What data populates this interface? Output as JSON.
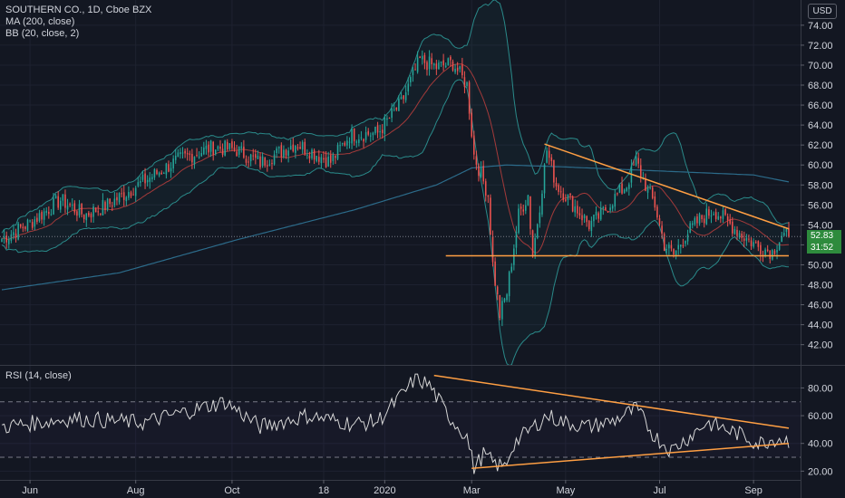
{
  "legend": {
    "symbol": "SOUTHERN CO., 1D, Cboe BZX",
    "ma": "MA (200, close)",
    "bb": "BB (20, close, 2)",
    "rsi": "RSI (14, close)"
  },
  "currency": "USD",
  "price_tag": "52.83",
  "countdown_tag": "31:52",
  "colors": {
    "background": "#131722",
    "up": "#26a69a",
    "down": "#ef5350",
    "ma200": "#2c6b8a",
    "bb_band": "#2a8a8a",
    "bb_basis": "#a33a3a",
    "trendline": "#ff9f43",
    "rsi_line": "#d6d6d6",
    "price_tag": "#2e8b3d"
  },
  "chart_data": [
    {
      "type": "candlestick",
      "y_ticks": [
        "42.00",
        "44.00",
        "46.00",
        "48.00",
        "50.00",
        "52.00",
        "54.00",
        "56.00",
        "58.00",
        "60.00",
        "62.00",
        "64.00",
        "66.00",
        "68.00",
        "70.00",
        "72.00",
        "74.00"
      ],
      "x_ticks": [
        "Jun",
        "Aug",
        "Oct",
        "18",
        "2020",
        "Mar",
        "May",
        "Jul",
        "Sep"
      ],
      "ylim": [
        40.7,
        75.8
      ],
      "x_count": 336,
      "x_tick_index": [
        12,
        57,
        98,
        137,
        163,
        200,
        240,
        280,
        320
      ],
      "last_price": 52.83,
      "price_anchors": [
        [
          0,
          52.6
        ],
        [
          12,
          54.2
        ],
        [
          25,
          56.5
        ],
        [
          35,
          55.0
        ],
        [
          45,
          56.0
        ],
        [
          60,
          58.3
        ],
        [
          75,
          60.5
        ],
        [
          90,
          61.8
        ],
        [
          100,
          61.5
        ],
        [
          110,
          60.2
        ],
        [
          125,
          62.2
        ],
        [
          133,
          61.2
        ],
        [
          140,
          60.3
        ],
        [
          148,
          63.0
        ],
        [
          160,
          63.2
        ],
        [
          170,
          66.2
        ],
        [
          178,
          70.5
        ],
        [
          185,
          69.8
        ],
        [
          192,
          70.2
        ],
        [
          198,
          68.0
        ],
        [
          201,
          61.0
        ],
        [
          207,
          57.0
        ],
        [
          209,
          50.0
        ],
        [
          212,
          45.0
        ],
        [
          215,
          47.2
        ],
        [
          220,
          55.0
        ],
        [
          224,
          57.0
        ],
        [
          226,
          51.0
        ],
        [
          229,
          56.0
        ],
        [
          232,
          61.5
        ],
        [
          236,
          58.0
        ],
        [
          240,
          57.0
        ],
        [
          245,
          55.5
        ],
        [
          250,
          54.0
        ],
        [
          255,
          55.0
        ],
        [
          260,
          56.5
        ],
        [
          266,
          58.0
        ],
        [
          270,
          60.4
        ],
        [
          274,
          58.0
        ],
        [
          278,
          56.0
        ],
        [
          282,
          52.0
        ],
        [
          286,
          51.0
        ],
        [
          291,
          53.0
        ],
        [
          297,
          54.5
        ],
        [
          303,
          55.5
        ],
        [
          308,
          54.5
        ],
        [
          315,
          53.0
        ],
        [
          322,
          51.8
        ],
        [
          328,
          51.3
        ],
        [
          332,
          53.0
        ],
        [
          335,
          52.8
        ]
      ],
      "ma200": {
        "name": "MA (200, close)",
        "anchors": [
          [
            0,
            47.5
          ],
          [
            50,
            49.2
          ],
          [
            100,
            52.5
          ],
          [
            150,
            55.5
          ],
          [
            185,
            58.0
          ],
          [
            200,
            59.7
          ],
          [
            215,
            60.0
          ],
          [
            240,
            59.8
          ],
          [
            280,
            59.4
          ],
          [
            320,
            59.0
          ],
          [
            335,
            58.3
          ]
        ]
      },
      "bollinger": {
        "name": "BB (20, close, 2)",
        "period": 20,
        "stddev": 2
      },
      "trendlines": [
        {
          "from": [
            231,
            62.1
          ],
          "to": [
            335,
            53.6
          ]
        },
        {
          "from": [
            189,
            50.9
          ],
          "to": [
            335,
            50.9
          ]
        }
      ]
    },
    {
      "type": "line",
      "title": "RSI (14, close)",
      "y_ticks": [
        "20.00",
        "40.00",
        "60.00",
        "80.00"
      ],
      "ylim": [
        15,
        94
      ],
      "reference_levels": [
        70,
        30
      ],
      "anchors": [
        [
          0,
          52
        ],
        [
          30,
          58
        ],
        [
          60,
          55
        ],
        [
          95,
          70
        ],
        [
          110,
          52
        ],
        [
          130,
          60
        ],
        [
          150,
          54
        ],
        [
          160,
          56
        ],
        [
          172,
          78
        ],
        [
          176,
          87
        ],
        [
          182,
          82
        ],
        [
          190,
          60
        ],
        [
          198,
          45
        ],
        [
          201,
          22
        ],
        [
          205,
          32
        ],
        [
          210,
          25
        ],
        [
          214,
          23
        ],
        [
          218,
          40
        ],
        [
          225,
          50
        ],
        [
          232,
          60
        ],
        [
          240,
          55
        ],
        [
          250,
          52
        ],
        [
          260,
          56
        ],
        [
          270,
          65
        ],
        [
          278,
          45
        ],
        [
          285,
          35
        ],
        [
          292,
          44
        ],
        [
          300,
          55
        ],
        [
          307,
          51
        ],
        [
          315,
          46
        ],
        [
          322,
          40
        ],
        [
          330,
          44
        ],
        [
          335,
          42
        ]
      ],
      "trendlines": [
        {
          "from": [
            184,
            89
          ],
          "to": [
            335,
            51
          ]
        },
        {
          "from": [
            200,
            22
          ],
          "to": [
            335,
            40
          ]
        }
      ]
    }
  ]
}
